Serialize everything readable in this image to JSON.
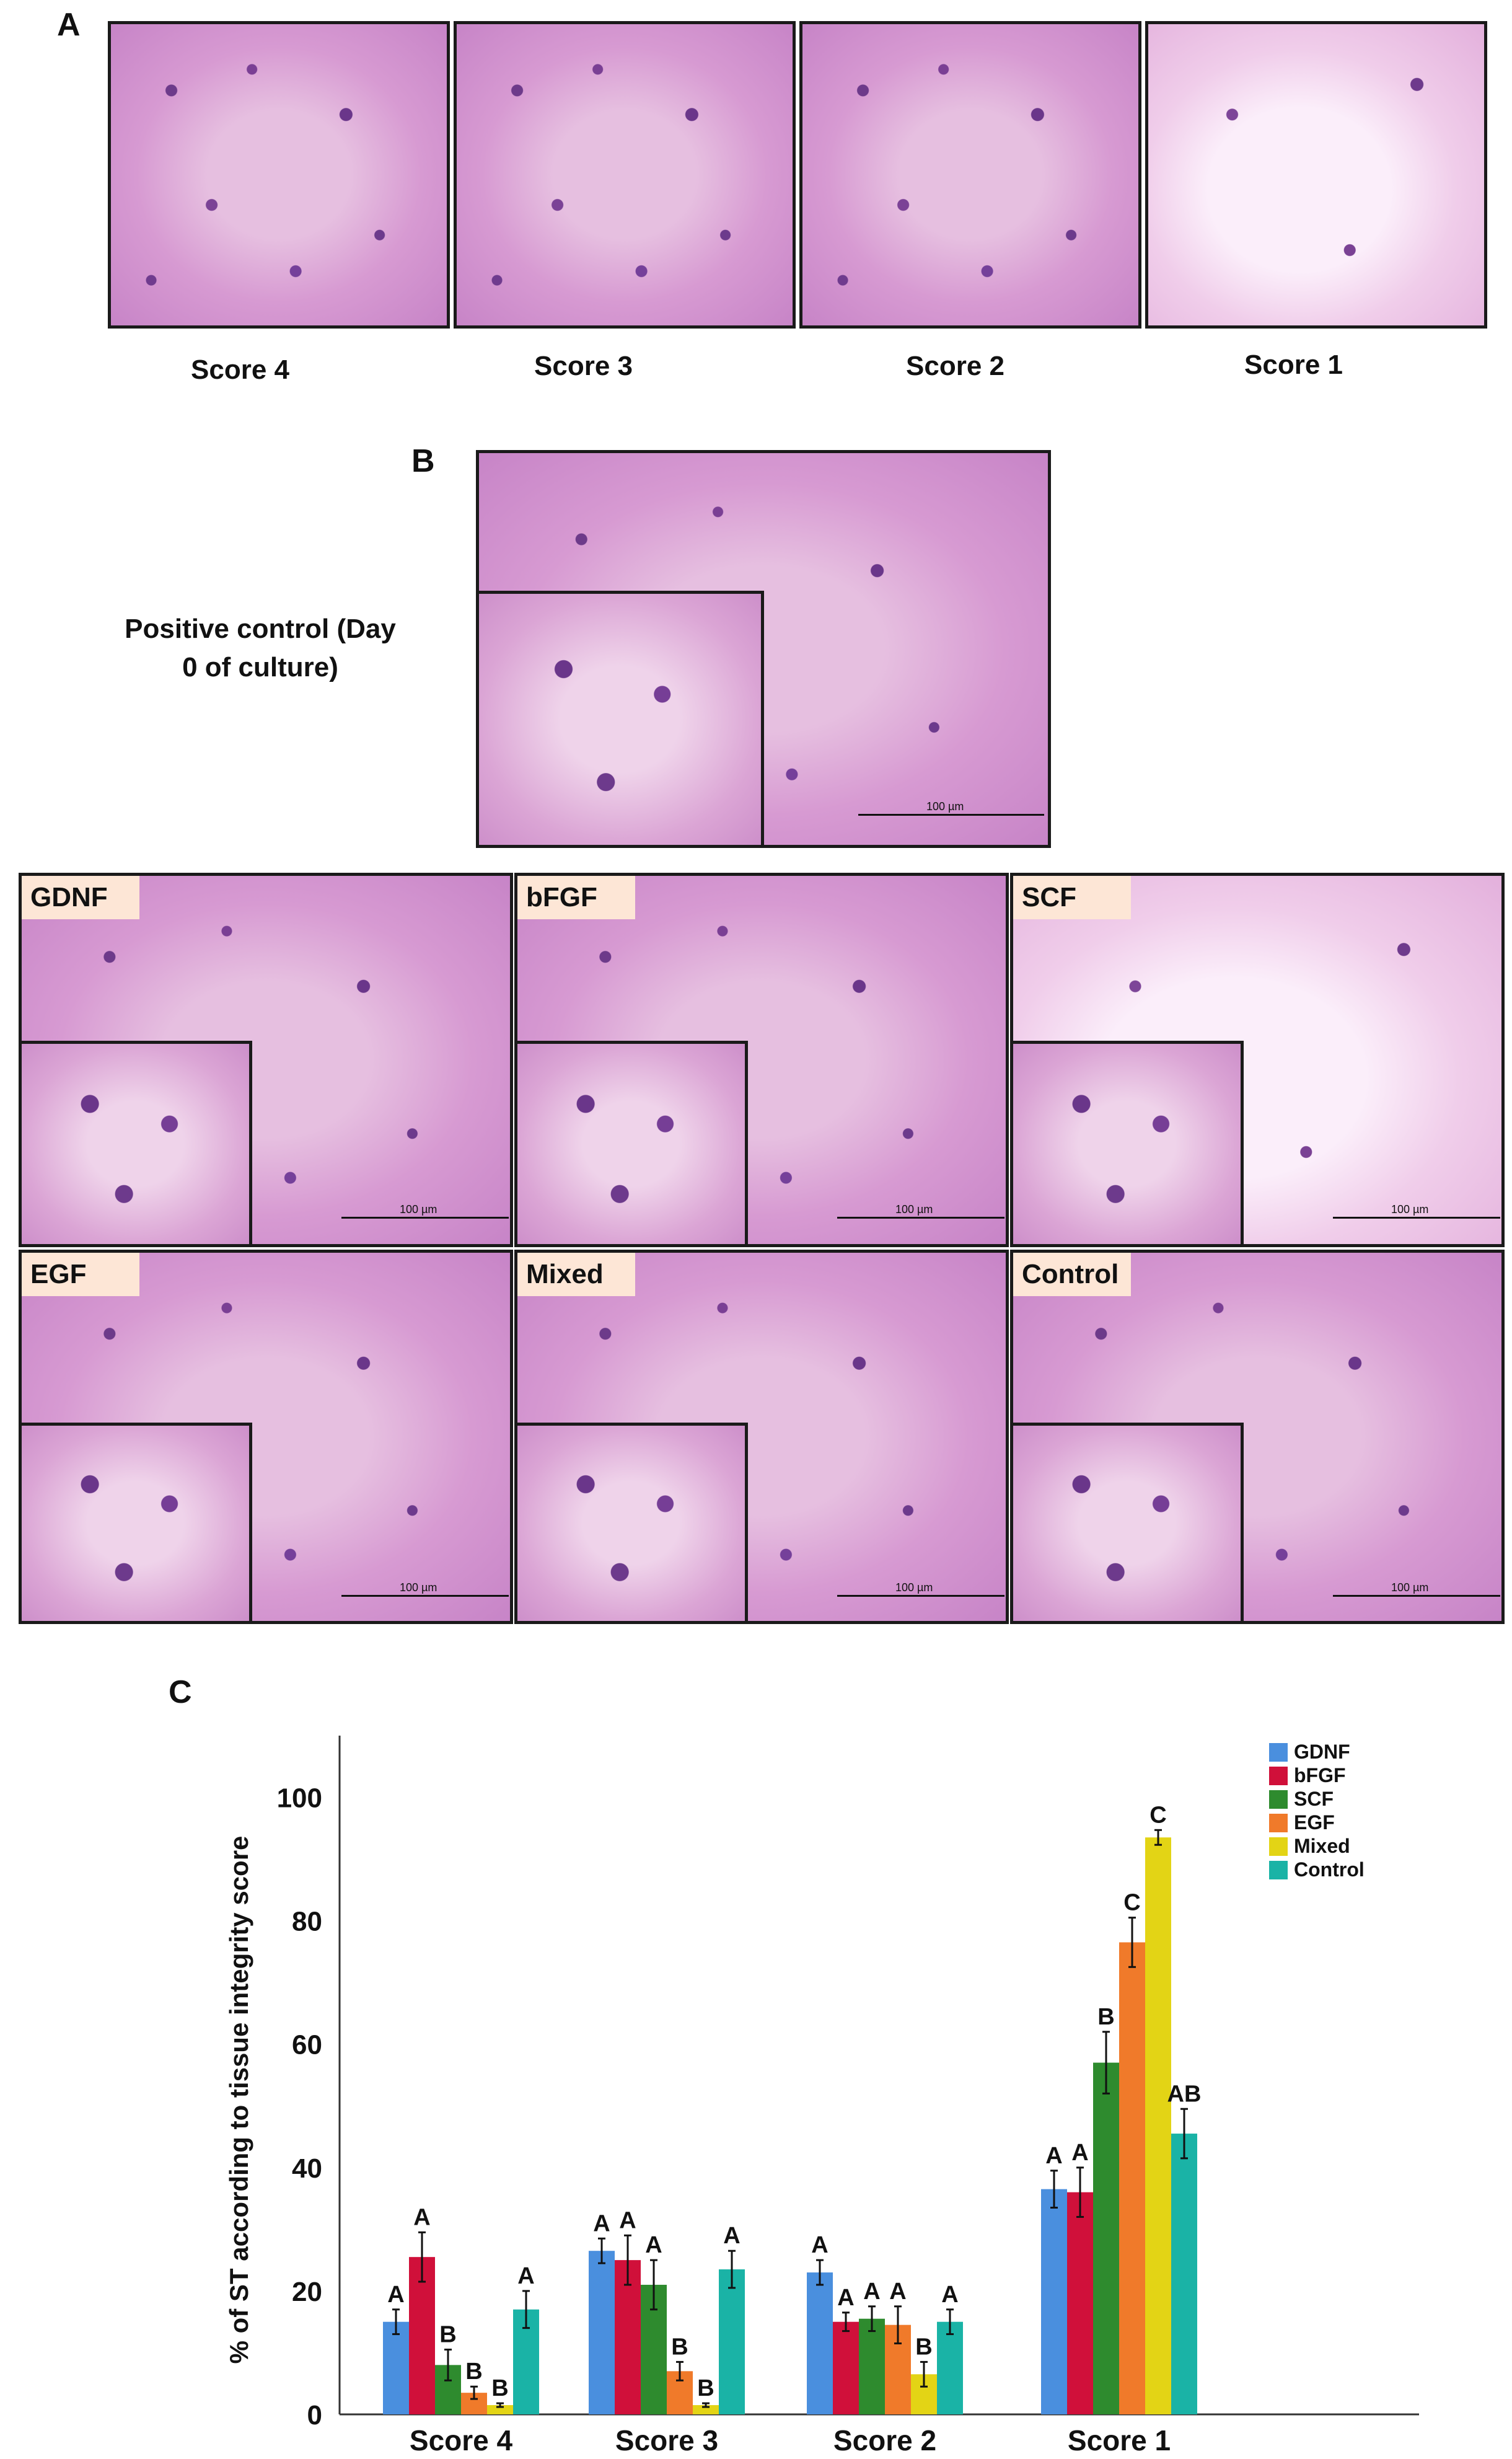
{
  "panels": {
    "a_letter": "A",
    "b_letter": "B",
    "c_letter": "C"
  },
  "panel_a": {
    "scores": [
      "Score 4",
      "Score 3",
      "Score 2",
      "Score 1"
    ]
  },
  "panel_b": {
    "positive_control_caption_line1": "Positive control (Day",
    "positive_control_caption_line2": "0 of culture)",
    "scale_label": "100 µm",
    "treatments": [
      "GDNF",
      "bFGF",
      "SCF",
      "EGF",
      "Mixed",
      "Control"
    ]
  },
  "colors": {
    "GDNF": "#4a8fde",
    "bFGF": "#d0103a",
    "SCF": "#2e8b2e",
    "EGF": "#f07a2a",
    "Mixed": "#e3d415",
    "Control": "#1ab3a6"
  },
  "chart_data": {
    "type": "bar",
    "ylabel": "% of ST according to tissue integrity score",
    "xlabel": "",
    "ylim": [
      0,
      110
    ],
    "yticks": [
      0,
      20,
      40,
      60,
      80,
      100
    ],
    "categories": [
      "Score 4",
      "Score 3",
      "Score 2",
      "Score 1"
    ],
    "legend_position": "top-right",
    "series": [
      {
        "name": "GDNF",
        "values": [
          15,
          26.5,
          23,
          36.5
        ],
        "errors": [
          2,
          2,
          2,
          3
        ],
        "letters": [
          "A",
          "A",
          "A",
          "A"
        ]
      },
      {
        "name": "bFGF",
        "values": [
          25.5,
          25,
          15,
          36
        ],
        "errors": [
          4,
          4,
          1.5,
          4
        ],
        "letters": [
          "A",
          "A",
          "A",
          "A"
        ]
      },
      {
        "name": "SCF",
        "values": [
          8,
          21,
          15.5,
          57
        ],
        "errors": [
          2.5,
          4,
          2,
          5
        ],
        "letters": [
          "B",
          "A",
          "A",
          "B"
        ]
      },
      {
        "name": "EGF",
        "values": [
          3.5,
          7,
          14.5,
          76.5
        ],
        "errors": [
          1,
          1.5,
          3,
          4
        ],
        "letters": [
          "B",
          "B",
          "A",
          "C"
        ]
      },
      {
        "name": "Mixed",
        "values": [
          1.5,
          1.5,
          6.5,
          93.5
        ],
        "errors": [
          0.3,
          0.3,
          2,
          1.2
        ],
        "letters": [
          "B",
          "B",
          "B",
          "C"
        ]
      },
      {
        "name": "Control",
        "values": [
          17,
          23.5,
          15,
          45.5
        ],
        "errors": [
          3,
          3,
          2,
          4
        ],
        "letters": [
          "A",
          "A",
          "A",
          "AB"
        ]
      }
    ]
  }
}
